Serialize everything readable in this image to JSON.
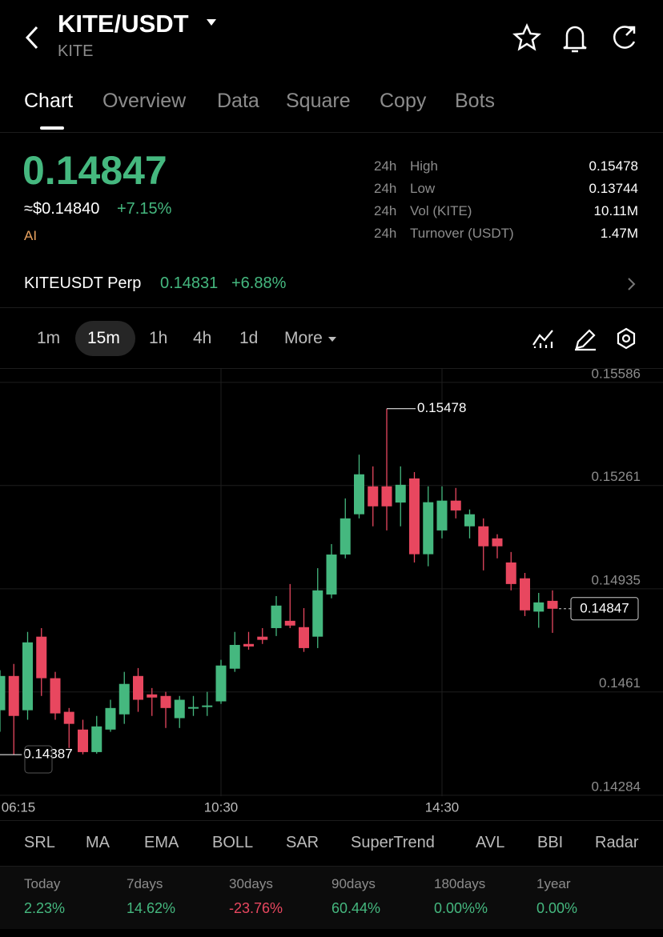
{
  "header": {
    "title": "KITE/USDT",
    "subtitle": "KITE"
  },
  "tabs": [
    "Chart",
    "Overview",
    "Data",
    "Square",
    "Copy",
    "Bots"
  ],
  "price": {
    "last": "0.14847",
    "usd": "≈$0.14840",
    "change": "+7.15%",
    "tag": "AI"
  },
  "stats": [
    {
      "period": "24h",
      "label": "High",
      "value": "0.15478"
    },
    {
      "period": "24h",
      "label": "Low",
      "value": "0.13744"
    },
    {
      "period": "24h",
      "label": "Vol (KITE)",
      "value": "10.11M"
    },
    {
      "period": "24h",
      "label": "Turnover (USDT)",
      "value": "1.47M"
    }
  ],
  "perp": {
    "name": "KITEUSDT Perp",
    "price": "0.14831",
    "change": "+6.88%"
  },
  "timeframes": [
    "1m",
    "15m",
    "1h",
    "4h",
    "1d",
    "More"
  ],
  "indicators": [
    "SRL",
    "MA",
    "EMA",
    "BOLL",
    "SAR",
    "SuperTrend",
    "AVL",
    "BBI",
    "Radar"
  ],
  "performance": [
    {
      "label": "Today",
      "value": "2.23%"
    },
    {
      "label": "7days",
      "value": "14.62%"
    },
    {
      "label": "30days",
      "value": "-23.76%"
    },
    {
      "label": "90days",
      "value": "60.44%"
    },
    {
      "label": "180days",
      "value": "0.00%%"
    },
    {
      "label": "1year",
      "value": "0.00%"
    }
  ],
  "chart_data": {
    "type": "candlestick",
    "categories": [
      "06:15",
      null,
      null,
      null,
      null,
      null,
      null,
      null,
      null,
      null,
      null,
      null,
      null,
      null,
      null,
      null,
      null,
      "10:30",
      null,
      null,
      null,
      null,
      null,
      null,
      null,
      null,
      null,
      null,
      null,
      null,
      null,
      null,
      null,
      "14:30",
      null,
      null,
      null,
      null,
      null,
      null,
      null,
      null
    ],
    "open": [
      0.14537,
      0.14527,
      0.14635,
      0.14527,
      0.14759,
      0.14628,
      0.14522,
      0.14466,
      0.14395,
      0.14466,
      0.14514,
      0.14635,
      0.14577,
      0.14572,
      0.14502,
      0.14532,
      0.14537,
      0.14555,
      0.14658,
      0.14736,
      0.14759,
      0.14786,
      0.14809,
      0.14789,
      0.14759,
      0.14892,
      0.15018,
      0.15145,
      0.15233,
      0.15233,
      0.15182,
      0.15258,
      0.15019,
      0.15094,
      0.15188,
      0.15107,
      0.15107,
      0.15069,
      0.14993,
      0.14943,
      0.14838,
      0.14872
    ],
    "high": [
      0.14597,
      0.14653,
      0.14673,
      0.14774,
      0.14786,
      0.14648,
      0.14534,
      0.14497,
      0.14509,
      0.1456,
      0.14648,
      0.1466,
      0.14597,
      0.14585,
      0.14572,
      0.14572,
      0.14585,
      0.14686,
      0.14774,
      0.14774,
      0.14786,
      0.14887,
      0.14925,
      0.14849,
      0.14975,
      0.15051,
      0.15195,
      0.15333,
      0.15296,
      0.15478,
      0.15296,
      0.15278,
      0.15233,
      0.15233,
      0.15228,
      0.1516,
      0.15132,
      0.15082,
      0.15026,
      0.1496,
      0.14897,
      0.14905
    ],
    "low": [
      0.14471,
      0.14459,
      0.14387,
      0.14497,
      0.14572,
      0.14497,
      0.14408,
      0.14388,
      0.1439,
      0.14459,
      0.14484,
      0.14522,
      0.14509,
      0.14471,
      0.14471,
      0.14509,
      0.14509,
      0.14547,
      0.14648,
      0.14718,
      0.14736,
      0.14761,
      0.14786,
      0.14711,
      0.14723,
      0.1488,
      0.15006,
      0.15132,
      0.15107,
      0.15094,
      0.15107,
      0.14993,
      0.14981,
      0.15069,
      0.15132,
      0.15069,
      0.14968,
      0.15006,
      0.14905,
      0.14824,
      0.14787,
      0.14771
    ],
    "close": [
      0.14552,
      0.14635,
      0.14509,
      0.14741,
      0.14628,
      0.14517,
      0.14484,
      0.14395,
      0.14476,
      0.14534,
      0.1461,
      0.1456,
      0.14567,
      0.14534,
      0.1456,
      0.14537,
      0.14542,
      0.14668,
      0.14733,
      0.14728,
      0.14749,
      0.14857,
      0.14794,
      0.14723,
      0.14905,
      0.15018,
      0.15132,
      0.15271,
      0.1517,
      0.1517,
      0.15238,
      0.15019,
      0.15183,
      0.15188,
      0.15157,
      0.15145,
      0.15044,
      0.15044,
      0.14925,
      0.14842,
      0.14867,
      0.14847
    ],
    "up_color": "#45b87f",
    "down_color": "#e8475f",
    "ylim": [
      0.14256,
      0.15606
    ],
    "yticks": [
      0.15586,
      0.15261,
      0.14935,
      0.1461,
      0.14284
    ],
    "high_marker": 0.15478,
    "low_marker": 0.14387,
    "last_price": 0.14847
  }
}
